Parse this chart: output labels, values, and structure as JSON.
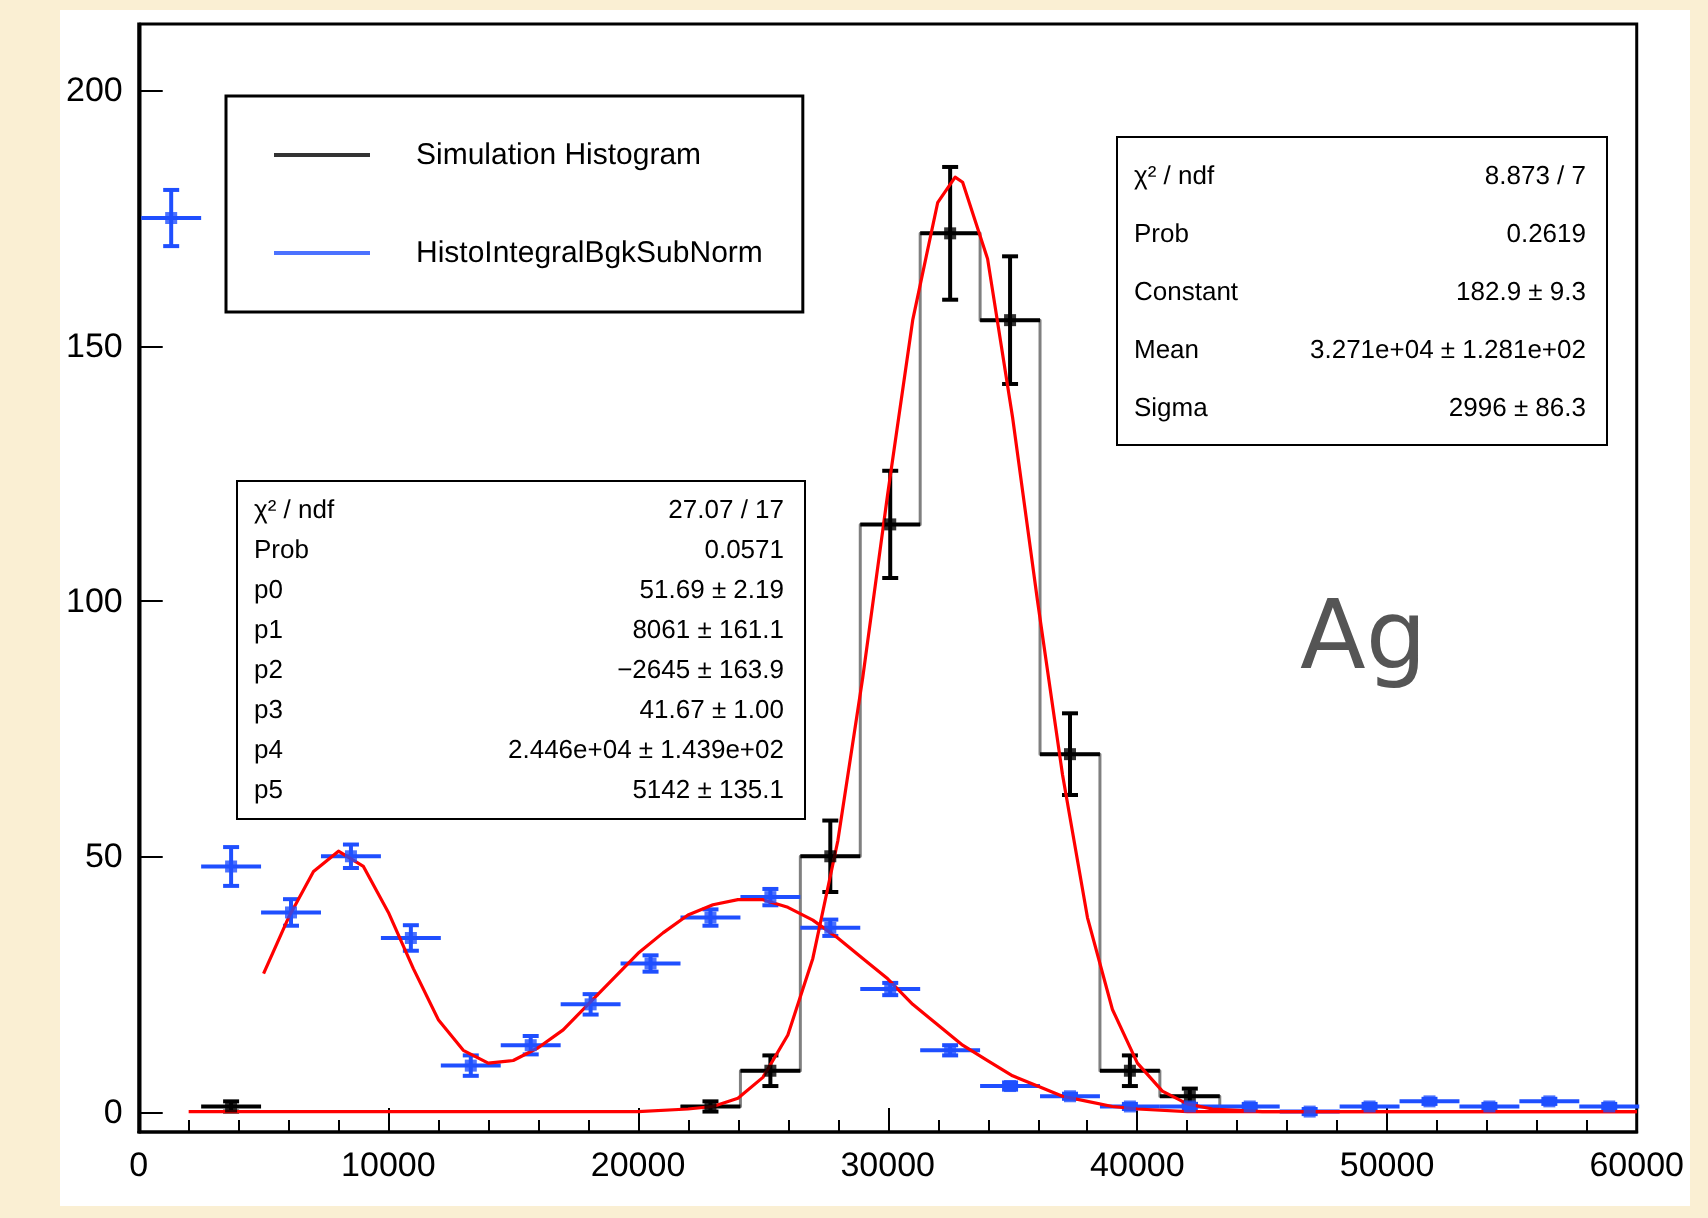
{
  "chart_data": {
    "type": "scatter",
    "xlim": [
      0,
      60000
    ],
    "xticks": [
      0,
      10000,
      20000,
      30000,
      40000,
      50000,
      60000
    ],
    "ylim": [
      -4,
      213
    ],
    "yticks": [
      0,
      50,
      100,
      150,
      200
    ],
    "grid": false,
    "legend": "top left",
    "series": [
      {
        "name": "Simulation Histogram",
        "color": "#000000",
        "x": [
          3700,
          22900,
          25300,
          27700,
          30100,
          32500,
          34900,
          37300,
          39700,
          42100
        ],
        "values": [
          1,
          1,
          8,
          50,
          115,
          172,
          155,
          70,
          8,
          3
        ],
        "errors": [
          1,
          1,
          3,
          7,
          10.5,
          13,
          12.5,
          8,
          3,
          1.5
        ],
        "xerrors": [
          1200,
          1200,
          1200,
          1200,
          1200,
          1200,
          1200,
          1200,
          1200,
          1200
        ]
      },
      {
        "type": "step",
        "color": "#808080",
        "x": [
          21700,
          24100,
          26500,
          28900,
          31300,
          33700,
          36100,
          38500,
          40900,
          43300
        ],
        "values": [
          1,
          8,
          50,
          115,
          172,
          155,
          70,
          8,
          3,
          0
        ]
      },
      {
        "name": "HistoIntegralBgkSubNorm",
        "type": "scatter",
        "color": "#1f4fff",
        "x": [
          1300,
          3700,
          6100,
          8500,
          10900,
          13300,
          15700,
          18100,
          20500,
          22900,
          25300,
          27700,
          30100,
          32500,
          34900,
          37300,
          39700,
          42100,
          44500,
          46900,
          49300,
          51700,
          54100,
          56500,
          58900
        ],
        "values": [
          175,
          48,
          39,
          50,
          34,
          9,
          13,
          21,
          29,
          38,
          42,
          36,
          24,
          12,
          5,
          3,
          1,
          1,
          1,
          0,
          1,
          2,
          1,
          2,
          1
        ],
        "errors": [
          5.5,
          3.8,
          2.6,
          2.3,
          2.5,
          2,
          1.8,
          2,
          1.6,
          1.6,
          1.6,
          1.6,
          1.2,
          1,
          0.7,
          0.5,
          0.5,
          0.5,
          0.5,
          0.5,
          0.5,
          0.5,
          0.5,
          0.5,
          0.5
        ],
        "xerrors": [
          1200,
          1200,
          1200,
          1200,
          1200,
          1200,
          1200,
          1200,
          1200,
          1200,
          1200,
          1200,
          1200,
          1200,
          1200,
          1200,
          1200,
          1200,
          1200,
          1200,
          1200,
          1200,
          1200,
          1200,
          1200
        ]
      },
      {
        "type": "line",
        "color": "#ff0000",
        "x": [
          5000,
          6000,
          7000,
          8000,
          9000,
          10000,
          11000,
          12000,
          13000,
          14000,
          15000,
          16000,
          17000,
          18000,
          19000,
          20000,
          21000,
          22000,
          23000,
          24000,
          25000,
          26000,
          27000,
          28000,
          29000,
          30000,
          31000,
          32000,
          33000,
          34000,
          35000,
          36000,
          37000,
          38000,
          39000,
          40000,
          42000,
          45000,
          50000,
          55000,
          60000
        ],
        "values": [
          27,
          38,
          47,
          51,
          48,
          39,
          28,
          18,
          12,
          9.5,
          10,
          12.5,
          16,
          21,
          26,
          31,
          35,
          38.5,
          40.5,
          41.5,
          41.5,
          40,
          37.5,
          34,
          30,
          26,
          21,
          17,
          13,
          10,
          7,
          5,
          3,
          2,
          1,
          0.5,
          0,
          0,
          0,
          0,
          0
        ]
      },
      {
        "type": "line",
        "color": "#ff0000",
        "x": [
          2000,
          10000,
          20000,
          22000,
          23000,
          24000,
          25000,
          26000,
          27000,
          28000,
          29000,
          30000,
          31000,
          32000,
          32700,
          33000,
          34000,
          35000,
          36000,
          37000,
          38000,
          39000,
          40000,
          41000,
          42000,
          43000,
          45000,
          50000,
          60000
        ],
        "values": [
          0,
          0,
          0,
          0.5,
          1,
          2.6,
          6.7,
          15,
          30,
          53,
          85,
          121,
          155,
          178,
          183,
          182,
          167,
          136,
          100,
          66,
          38,
          20,
          9.5,
          4,
          1.5,
          0.5,
          0,
          0,
          0
        ]
      }
    ],
    "annotations": [
      "χ² / ndf\t27.07 / 17\nProb\t0.0571\np0\t51.69 ± 2.19\np1\t8061 ± 161.1\np2\t−2645 ± 163.9\np3\t41.67 ± 1.00\np4\t2.446e+04 ± 1.439e+02\np5\t5142 ± 135.1",
      "χ² / ndf\t8.873 / 7\nProb\t0.2619\nConstant\t182.9 ± 9.3\nMean\t3.271e+04 ± 1.281e+02\nSigma\t2996 ± 86.3",
      "Ag"
    ]
  }
}
